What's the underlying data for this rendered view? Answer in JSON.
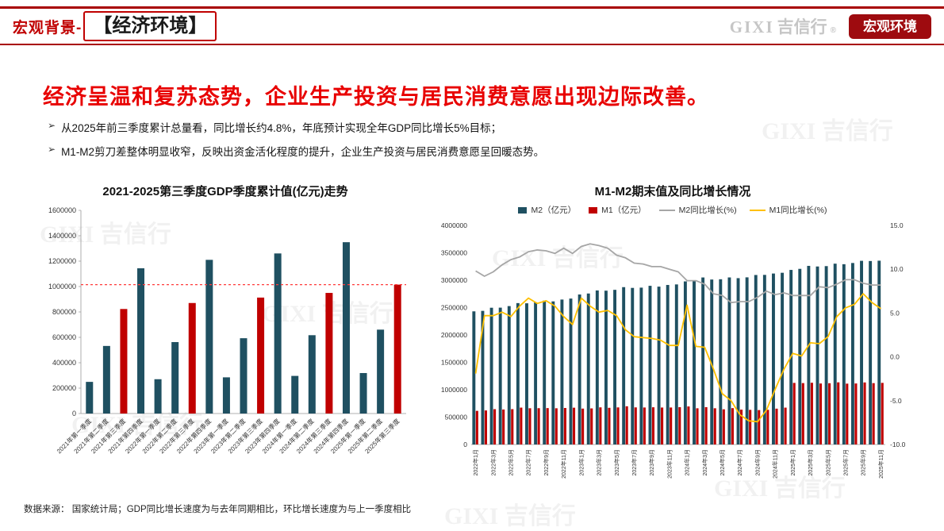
{
  "header": {
    "breadcrumb": "宏观背景-",
    "title": "【经济环境】",
    "logo_latin": "GIXI",
    "logo_cn": "吉信行",
    "logo_reg": "®",
    "badge": "宏观环境"
  },
  "headline": "经济呈温和复苏态势，企业生产投资与居民消费意愿出现边际改善。",
  "bullet_marker": "➢",
  "bullets": [
    "从2025年前三季度累计总量看，同比增长约4.8%，年底预计实现全年GDP同比增长5%目标；",
    "M1-M2剪刀差整体明显收窄，反映出资金活化程度的提升，企业生产投资与居民消费意愿呈回暖态势。"
  ],
  "footnote": "数据来源： 国家统计局；GDP同比增长速度为与去年同期相比，环比增长速度为与上一季度相比",
  "watermark": "GIXI 吉信行",
  "colors": {
    "accent_red": "#c00000",
    "badge_red": "#9e0b0f",
    "bar_teal": "#1f5061",
    "bar_red": "#c00000",
    "line_gray": "#a6a6a6",
    "line_yellow": "#ffc000",
    "reference_red": "#ff3b3b"
  },
  "chart_data": [
    {
      "type": "bar",
      "title": "2021-2025第三季度GDP季度累计值(亿元)走势",
      "categories": [
        "2021年第一季度",
        "2021年第二季度",
        "2021年第三季度",
        "2021年第四季度",
        "2022年第一季度",
        "2022年第二季度",
        "2022年第三季度",
        "2022年第四季度",
        "2023年第一季度",
        "2023年第二季度",
        "2023年第三季度",
        "2023年第四季度",
        "2024年第一季度",
        "2024年第二季度",
        "2024年第三季度",
        "2024年第四季度",
        "2025年第一季度",
        "2025年第二季度",
        "2025年第三季度"
      ],
      "values": [
        249310,
        532167,
        823131,
        1143670,
        270178,
        562642,
        870269,
        1210207,
        284997,
        593034,
        913027,
        1260582,
        296299,
        616836,
        949746,
        1349084,
        318758,
        660536,
        1015037
      ],
      "highlight_indices": [
        2,
        6,
        10,
        14,
        18
      ],
      "bar_color": "#1f5061",
      "highlight_color": "#c00000",
      "reference_line": 1015037,
      "ylim": [
        0,
        1600000
      ],
      "ytick_step": 200000,
      "xlabel": "",
      "ylabel": ""
    },
    {
      "type": "combo",
      "title": "M1-M2期末值及同比增长情况",
      "x": [
        "2022年1月",
        "2022年2月",
        "2022年3月",
        "2022年4月",
        "2022年5月",
        "2022年6月",
        "2022年7月",
        "2022年8月",
        "2022年9月",
        "2022年10月",
        "2022年11月",
        "2022年12月",
        "2023年1月",
        "2023年2月",
        "2023年3月",
        "2023年4月",
        "2023年5月",
        "2023年6月",
        "2023年7月",
        "2023年8月",
        "2023年9月",
        "2023年10月",
        "2023年11月",
        "2023年12月",
        "2024年1月",
        "2024年2月",
        "2024年3月",
        "2024年4月",
        "2024年5月",
        "2024年6月",
        "2024年7月",
        "2024年8月",
        "2024年9月",
        "2024年10月",
        "2024年11月",
        "2024年12月",
        "2025年1月",
        "2025年2月",
        "2025年3月",
        "2025年4月",
        "2025年5月",
        "2025年6月",
        "2025年7月",
        "2025年8月",
        "2025年9月",
        "2025年10月",
        "2025年11月"
      ],
      "bar_series": [
        {
          "name": "M2（亿元）",
          "color": "#1f5061",
          "values": [
            2431000,
            2440000,
            2497000,
            2498500,
            2527000,
            2581500,
            2578100,
            2595500,
            2626600,
            2612900,
            2646500,
            2664300,
            2738800,
            2756800,
            2812700,
            2808500,
            2823900,
            2873000,
            2859300,
            2863900,
            2897300,
            2882300,
            2912700,
            2922700,
            2977700,
            2997000,
            3049600,
            3012000,
            3017000,
            3050200,
            3037100,
            3051900,
            3094800,
            3096800,
            3121600,
            3135300,
            3187500,
            3207000,
            3261300,
            3250100,
            3256900,
            3301700,
            3291800,
            3313800,
            3353800,
            3350000,
            3356000
          ]
        },
        {
          "name": "M1（亿元）",
          "color": "#c00000",
          "values": [
            613900,
            621600,
            644700,
            638700,
            645100,
            673400,
            661800,
            662800,
            664500,
            661100,
            666500,
            671700,
            655200,
            658800,
            677800,
            669800,
            677100,
            697400,
            677200,
            675300,
            679100,
            674700,
            675500,
            681000,
            694200,
            661100,
            681700,
            661400,
            642300,
            663800,
            635700,
            632200,
            628300,
            633400,
            654000,
            673000,
            1124500,
            1121000,
            1127000,
            1113500,
            1118600,
            1134600,
            1111000,
            1114200,
            1132700,
            1120100,
            1125000
          ]
        }
      ],
      "line_series": [
        {
          "name": "M2同比增长(%)",
          "color": "#a6a6a6",
          "axis": "right",
          "values": [
            9.8,
            9.2,
            9.7,
            10.5,
            11.1,
            11.4,
            12.0,
            12.2,
            12.1,
            11.8,
            12.4,
            11.8,
            12.6,
            12.9,
            12.7,
            12.4,
            11.6,
            11.3,
            10.7,
            10.6,
            10.3,
            10.3,
            10.0,
            9.7,
            8.7,
            8.7,
            8.3,
            7.2,
            7.0,
            6.2,
            6.3,
            6.3,
            6.8,
            7.5,
            7.1,
            7.3,
            7.0,
            7.0,
            7.0,
            8.0,
            7.9,
            8.3,
            8.8,
            8.8,
            8.4,
            8.2,
            8.2
          ]
        },
        {
          "name": "M1同比增长(%)",
          "color": "#ffc000",
          "axis": "right",
          "values": [
            -1.9,
            4.7,
            4.7,
            5.1,
            4.6,
            5.8,
            6.7,
            6.1,
            6.4,
            5.8,
            4.6,
            3.7,
            6.7,
            5.8,
            5.1,
            5.3,
            4.7,
            3.1,
            2.3,
            2.2,
            2.1,
            1.9,
            1.3,
            1.3,
            5.9,
            1.2,
            1.1,
            -1.4,
            -4.2,
            -5.0,
            -6.6,
            -7.3,
            -7.4,
            -6.1,
            -3.7,
            -1.4,
            0.4,
            0.1,
            1.6,
            1.5,
            2.3,
            4.6,
            5.6,
            6.0,
            7.2,
            6.2,
            5.5
          ]
        }
      ],
      "ylim_left": [
        0,
        4000000
      ],
      "ytick_left_step": 500000,
      "ylim_right": [
        -10,
        15
      ],
      "ytick_right_step": 5,
      "xtick_every": 2,
      "legend_position": "top"
    }
  ]
}
